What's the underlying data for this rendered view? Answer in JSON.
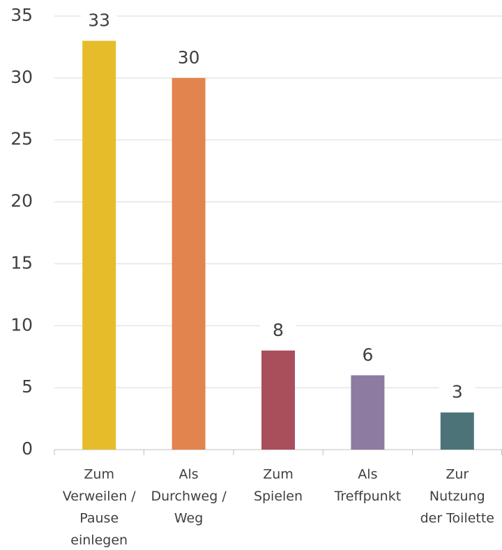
{
  "chart_data": {
    "type": "bar",
    "categories": [
      [
        "Zum",
        "Verweilen /",
        "Pause",
        "einlegen"
      ],
      [
        "Als",
        "Durchweg /",
        "Weg"
      ],
      [
        "Zum",
        "Spielen"
      ],
      [
        "Als",
        "Treffpunkt"
      ],
      [
        "Zur",
        "Nutzung",
        "der Toilette"
      ]
    ],
    "values": [
      33,
      30,
      8,
      6,
      3
    ],
    "colors": [
      "#e6bc2b",
      "#e2844e",
      "#a94f5b",
      "#8d7ba1",
      "#4c7478"
    ],
    "ylim": [
      0,
      35
    ],
    "yticks": [
      0,
      5,
      10,
      15,
      20,
      25,
      30,
      35
    ],
    "grid": true
  }
}
